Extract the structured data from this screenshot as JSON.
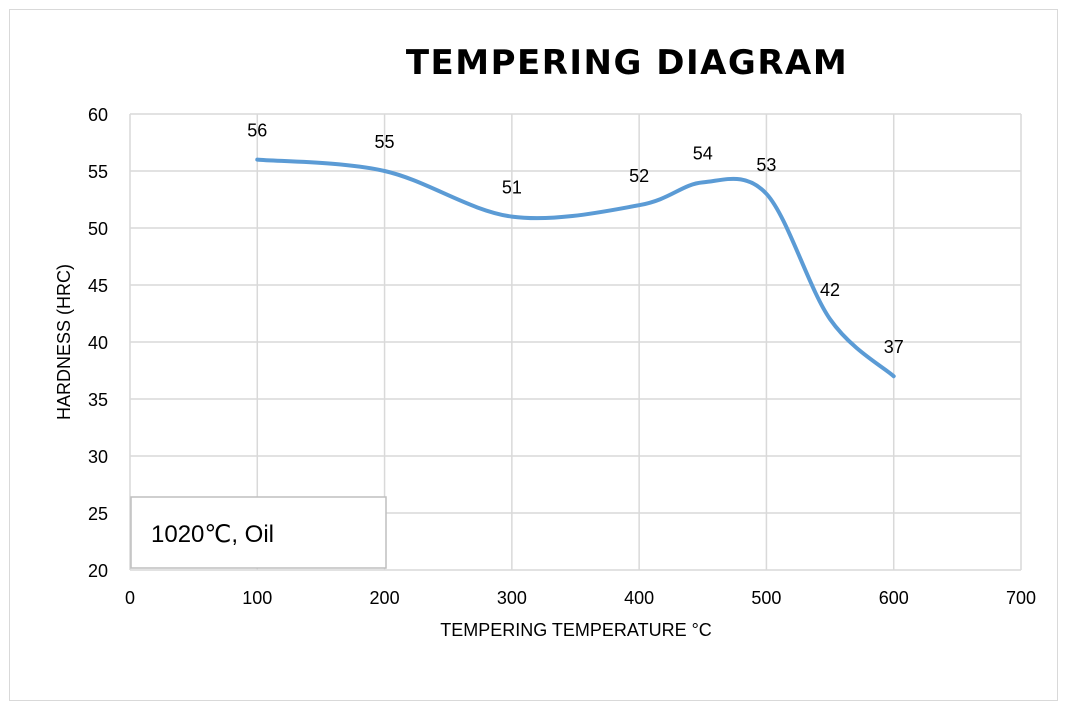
{
  "chart_data": {
    "type": "line",
    "title": "TEMPERING DIAGRAM",
    "xlabel": "TEMPERING TEMPERATURE °C",
    "ylabel": "HARDNESS (HRC)",
    "xlim": [
      0,
      700
    ],
    "ylim": [
      20,
      60
    ],
    "xticks": [
      0,
      100,
      200,
      300,
      400,
      500,
      600,
      700
    ],
    "yticks": [
      20,
      25,
      30,
      35,
      40,
      45,
      50,
      55,
      60
    ],
    "grid": true,
    "smooth": true,
    "series": [
      {
        "name": "1020℃, Oil",
        "color": "#5b9bd5",
        "x": [
          100,
          200,
          300,
          400,
          450,
          500,
          550,
          600
        ],
        "y": [
          56,
          55,
          51,
          52,
          54,
          53,
          42,
          37
        ],
        "labels": [
          "56",
          "55",
          "51",
          "52",
          "54",
          "53",
          "42",
          "37"
        ]
      }
    ],
    "annotation": "1020℃, Oil"
  }
}
